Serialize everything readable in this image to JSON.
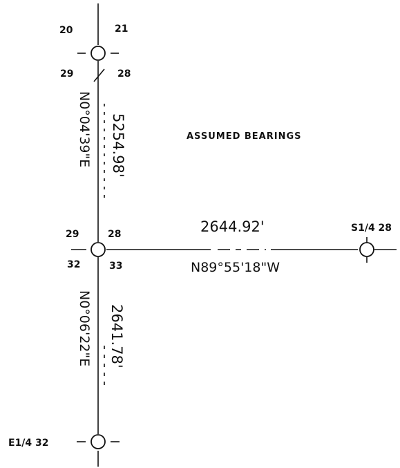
{
  "title": "ASSUMED BEARINGS",
  "colors": {
    "ink": "#111111",
    "paper": "#ffffff"
  },
  "sections": {
    "top": [
      "20",
      "21",
      "29",
      "28"
    ],
    "middle": [
      "29",
      "28",
      "32",
      "33"
    ]
  },
  "corners": {
    "south_quarter": "S1/4 28",
    "east_quarter": "E1/4 32"
  },
  "courses": {
    "north_bearing": "N0°04'39\"E",
    "north_distance": "5254.98'",
    "south_bearing": "N0°06'22\"E",
    "south_distance": "2641.78'",
    "east_distance": "2644.92'",
    "east_bearing": "N89°55'18\"W"
  }
}
